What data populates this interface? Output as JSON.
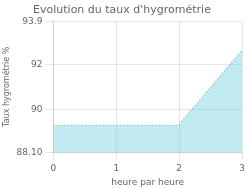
{
  "chart_data": {
    "type": "area",
    "title": "Evolution du taux d'hygrométrie",
    "xlabel": "heure par heure",
    "ylabel": "Taux hygrométrie %",
    "x": [
      0,
      1,
      2,
      2.05,
      3
    ],
    "values": [
      89.3,
      89.3,
      89.3,
      89.5,
      92.6
    ],
    "xlim": [
      0,
      3
    ],
    "ylim": [
      88.1,
      93.9
    ],
    "xticks": [
      0,
      1,
      2,
      3
    ],
    "yticks": [
      88.1,
      90,
      92,
      93.9
    ],
    "color": "#66ccdd",
    "line_style": "dotted",
    "grid": true
  }
}
